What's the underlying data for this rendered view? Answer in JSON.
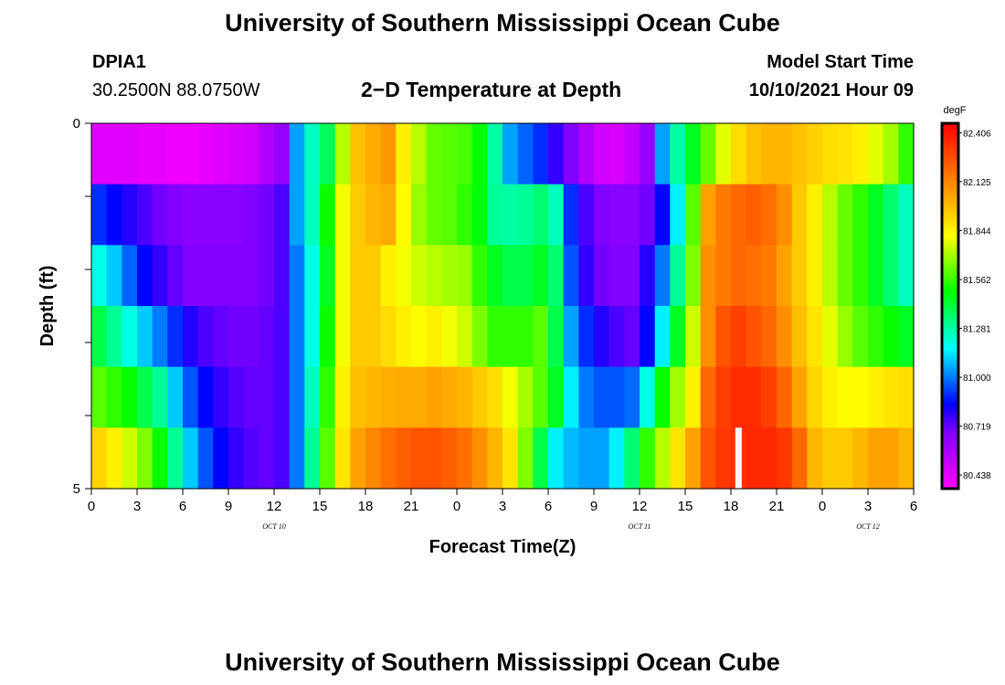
{
  "header": {
    "title": "University of Southern Mississippi Ocean Cube",
    "footer_title": "University of Southern Mississippi Ocean Cube",
    "station": "DPIA1",
    "coords": "30.2500N  88.0750W",
    "plot_title": "2−D Temperature at Depth",
    "model_start_label": "Model Start Time",
    "model_start_value": "10/10/2021 Hour 09"
  },
  "colors": {
    "colormap": [
      "#ff00ff",
      "#c000ff",
      "#8000ff",
      "#0000ff",
      "#0080ff",
      "#00ffff",
      "#00ff80",
      "#00ff00",
      "#80ff00",
      "#ffff00",
      "#ffc000",
      "#ff8000",
      "#ff4000",
      "#ff0000"
    ],
    "missing": "#ffffff"
  },
  "chart_data": {
    "type": "heatmap",
    "title": "2−D Temperature at Depth",
    "xlabel": "Forecast Time(Z)",
    "ylabel": "Depth (ft)",
    "x_hours": [
      0,
      1,
      2,
      3,
      4,
      5,
      6,
      7,
      8,
      9,
      10,
      11,
      12,
      13,
      14,
      15,
      16,
      17,
      18,
      19,
      20,
      21,
      22,
      23,
      24,
      25,
      26,
      27,
      28,
      29,
      30,
      31,
      32,
      33,
      34,
      35,
      36,
      37,
      38,
      39,
      40,
      41,
      42,
      43,
      44,
      45,
      46,
      47,
      48,
      49,
      50,
      51,
      52,
      53,
      54
    ],
    "x_tick_labels": [
      "0",
      "3",
      "6",
      "9",
      "12",
      "15",
      "18",
      "21",
      "0",
      "3",
      "6",
      "9",
      "12",
      "15",
      "18",
      "21",
      "0",
      "3",
      "6"
    ],
    "x_day_labels": [
      {
        "hour": 12,
        "label": "OCT 10"
      },
      {
        "hour": 36,
        "label": "OCT 11"
      },
      {
        "hour": 51,
        "label": "OCT 12"
      }
    ],
    "xlim": [
      0,
      54
    ],
    "ylim": [
      0,
      5
    ],
    "y_tick_labels": [
      "0",
      "5"
    ],
    "depth_levels_ft": [
      0,
      1,
      2,
      3,
      4,
      5
    ],
    "colorbar": {
      "unit": "degF",
      "tick_labels": [
        "82.406",
        "82.125",
        "81.844",
        "81.562",
        "81.281",
        "81.000",
        "80.719",
        "80.438"
      ],
      "min": 80.36,
      "max": 82.46
    },
    "missing_cells": [
      {
        "hour": 42,
        "depth_index": 5
      }
    ],
    "depth_rows": [
      {
        "depth_ft": 0,
        "values": [
          80.44,
          80.44,
          80.44,
          80.42,
          80.42,
          80.4,
          80.4,
          80.42,
          80.44,
          80.46,
          80.48,
          80.56,
          80.63,
          81.05,
          81.25,
          81.38,
          81.72,
          81.97,
          82.03,
          82.08,
          81.85,
          81.72,
          81.62,
          81.6,
          81.58,
          81.5,
          81.28,
          81.05,
          80.97,
          80.9,
          80.78,
          80.68,
          80.56,
          80.48,
          80.46,
          80.52,
          80.63,
          81.05,
          81.28,
          81.45,
          81.62,
          81.78,
          81.9,
          81.97,
          82.0,
          82.0,
          81.97,
          81.93,
          81.9,
          81.88,
          81.85,
          81.78,
          81.7,
          81.55,
          81.15
        ]
      },
      {
        "depth_ft": 1,
        "values": [
          80.9,
          80.85,
          80.8,
          80.75,
          80.7,
          80.68,
          80.66,
          80.66,
          80.66,
          80.66,
          80.68,
          80.7,
          80.75,
          81.05,
          81.25,
          81.5,
          81.8,
          81.95,
          82.0,
          82.03,
          81.82,
          81.68,
          81.62,
          81.6,
          81.55,
          81.48,
          81.3,
          81.28,
          81.3,
          81.35,
          81.25,
          80.9,
          80.75,
          80.68,
          80.66,
          80.66,
          80.7,
          80.85,
          81.15,
          81.6,
          82.05,
          82.15,
          82.2,
          82.22,
          82.18,
          82.1,
          81.95,
          81.85,
          81.72,
          81.62,
          81.55,
          81.45,
          81.35,
          81.25,
          81.1
        ]
      },
      {
        "depth_ft": 2,
        "values": [
          81.2,
          81.1,
          80.97,
          80.85,
          80.78,
          80.72,
          80.68,
          80.68,
          80.68,
          80.68,
          80.68,
          80.7,
          80.75,
          81.0,
          81.2,
          81.45,
          81.8,
          81.95,
          81.95,
          81.85,
          81.8,
          81.75,
          81.72,
          81.7,
          81.68,
          81.55,
          81.45,
          81.4,
          81.4,
          81.45,
          81.35,
          80.95,
          80.78,
          80.7,
          80.68,
          80.68,
          80.8,
          81.0,
          81.3,
          81.65,
          82.1,
          82.15,
          82.2,
          82.18,
          82.15,
          82.05,
          81.95,
          81.85,
          81.72,
          81.62,
          81.55,
          81.45,
          81.35,
          81.25,
          81.15
        ]
      },
      {
        "depth_ft": 3,
        "values": [
          81.4,
          81.3,
          81.2,
          81.1,
          81.0,
          80.9,
          80.8,
          80.75,
          80.72,
          80.7,
          80.7,
          80.72,
          80.75,
          81.0,
          81.2,
          81.5,
          81.8,
          81.95,
          81.95,
          81.9,
          81.85,
          81.82,
          81.85,
          81.8,
          81.75,
          81.65,
          81.55,
          81.55,
          81.55,
          81.6,
          81.4,
          81.05,
          80.9,
          80.8,
          80.75,
          80.72,
          80.85,
          81.15,
          81.45,
          81.75,
          82.1,
          82.25,
          82.3,
          82.25,
          82.2,
          82.1,
          81.98,
          81.88,
          81.78,
          81.68,
          81.6,
          81.55,
          81.5,
          81.45,
          81.4
        ]
      },
      {
        "depth_ft": 4,
        "values": [
          81.6,
          81.55,
          81.5,
          81.4,
          81.3,
          81.1,
          80.95,
          80.85,
          80.78,
          80.74,
          80.72,
          80.72,
          80.75,
          81.0,
          81.25,
          81.55,
          81.85,
          81.98,
          82.0,
          82.02,
          82.03,
          82.03,
          82.05,
          82.03,
          82.0,
          81.95,
          81.9,
          81.8,
          81.7,
          81.6,
          81.45,
          81.15,
          81.0,
          80.95,
          80.95,
          80.98,
          81.2,
          81.5,
          81.7,
          81.85,
          82.2,
          82.3,
          82.35,
          82.35,
          82.3,
          82.2,
          82.05,
          81.92,
          81.85,
          81.82,
          81.82,
          81.85,
          81.88,
          81.9,
          81.92
        ]
      },
      {
        "depth_ft": 5,
        "values": [
          81.92,
          81.85,
          81.75,
          81.65,
          81.5,
          81.3,
          81.1,
          80.95,
          80.85,
          80.78,
          80.74,
          80.72,
          80.75,
          81.0,
          81.3,
          81.6,
          81.88,
          82.05,
          82.12,
          82.18,
          82.22,
          82.25,
          82.25,
          82.22,
          82.18,
          82.1,
          82.0,
          81.88,
          81.65,
          81.4,
          81.15,
          81.08,
          81.05,
          81.05,
          81.15,
          81.35,
          81.55,
          81.72,
          81.88,
          82.05,
          82.25,
          82.32,
          82.34,
          82.36,
          82.36,
          82.32,
          82.2,
          82.0,
          81.95,
          81.95,
          82.0,
          82.05,
          82.05,
          82.0,
          81.9
        ]
      }
    ]
  }
}
